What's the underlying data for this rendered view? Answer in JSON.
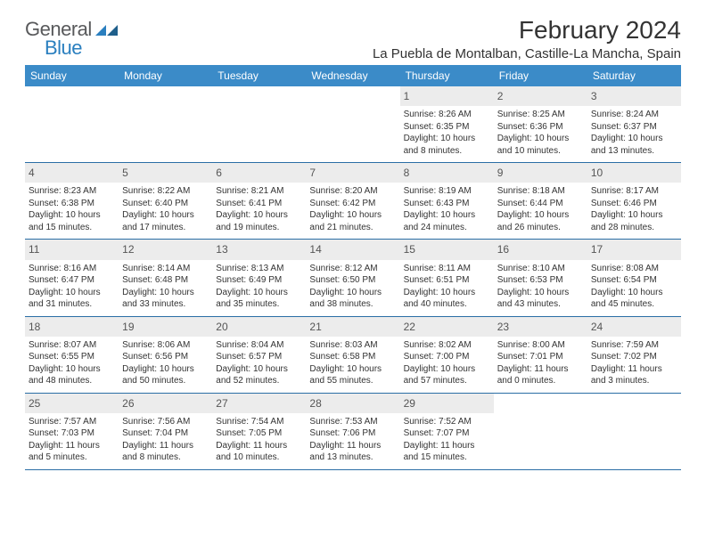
{
  "logo": {
    "general": "General",
    "blue": "Blue"
  },
  "header": {
    "month_title": "February 2024",
    "location": "La Puebla de Montalban, Castille-La Mancha, Spain"
  },
  "colors": {
    "header_bg": "#3b8bc8",
    "row_border": "#2a6ea5",
    "daynum_bg": "#ececec",
    "text": "#333333",
    "logo_gray": "#58595b",
    "logo_blue": "#2a7fbf"
  },
  "weekdays": [
    "Sunday",
    "Monday",
    "Tuesday",
    "Wednesday",
    "Thursday",
    "Friday",
    "Saturday"
  ],
  "weeks": [
    [
      {
        "blank": true
      },
      {
        "blank": true
      },
      {
        "blank": true
      },
      {
        "blank": true
      },
      {
        "day": "1",
        "sunrise": "Sunrise: 8:26 AM",
        "sunset": "Sunset: 6:35 PM",
        "daylight1": "Daylight: 10 hours",
        "daylight2": "and 8 minutes."
      },
      {
        "day": "2",
        "sunrise": "Sunrise: 8:25 AM",
        "sunset": "Sunset: 6:36 PM",
        "daylight1": "Daylight: 10 hours",
        "daylight2": "and 10 minutes."
      },
      {
        "day": "3",
        "sunrise": "Sunrise: 8:24 AM",
        "sunset": "Sunset: 6:37 PM",
        "daylight1": "Daylight: 10 hours",
        "daylight2": "and 13 minutes."
      }
    ],
    [
      {
        "day": "4",
        "sunrise": "Sunrise: 8:23 AM",
        "sunset": "Sunset: 6:38 PM",
        "daylight1": "Daylight: 10 hours",
        "daylight2": "and 15 minutes."
      },
      {
        "day": "5",
        "sunrise": "Sunrise: 8:22 AM",
        "sunset": "Sunset: 6:40 PM",
        "daylight1": "Daylight: 10 hours",
        "daylight2": "and 17 minutes."
      },
      {
        "day": "6",
        "sunrise": "Sunrise: 8:21 AM",
        "sunset": "Sunset: 6:41 PM",
        "daylight1": "Daylight: 10 hours",
        "daylight2": "and 19 minutes."
      },
      {
        "day": "7",
        "sunrise": "Sunrise: 8:20 AM",
        "sunset": "Sunset: 6:42 PM",
        "daylight1": "Daylight: 10 hours",
        "daylight2": "and 21 minutes."
      },
      {
        "day": "8",
        "sunrise": "Sunrise: 8:19 AM",
        "sunset": "Sunset: 6:43 PM",
        "daylight1": "Daylight: 10 hours",
        "daylight2": "and 24 minutes."
      },
      {
        "day": "9",
        "sunrise": "Sunrise: 8:18 AM",
        "sunset": "Sunset: 6:44 PM",
        "daylight1": "Daylight: 10 hours",
        "daylight2": "and 26 minutes."
      },
      {
        "day": "10",
        "sunrise": "Sunrise: 8:17 AM",
        "sunset": "Sunset: 6:46 PM",
        "daylight1": "Daylight: 10 hours",
        "daylight2": "and 28 minutes."
      }
    ],
    [
      {
        "day": "11",
        "sunrise": "Sunrise: 8:16 AM",
        "sunset": "Sunset: 6:47 PM",
        "daylight1": "Daylight: 10 hours",
        "daylight2": "and 31 minutes."
      },
      {
        "day": "12",
        "sunrise": "Sunrise: 8:14 AM",
        "sunset": "Sunset: 6:48 PM",
        "daylight1": "Daylight: 10 hours",
        "daylight2": "and 33 minutes."
      },
      {
        "day": "13",
        "sunrise": "Sunrise: 8:13 AM",
        "sunset": "Sunset: 6:49 PM",
        "daylight1": "Daylight: 10 hours",
        "daylight2": "and 35 minutes."
      },
      {
        "day": "14",
        "sunrise": "Sunrise: 8:12 AM",
        "sunset": "Sunset: 6:50 PM",
        "daylight1": "Daylight: 10 hours",
        "daylight2": "and 38 minutes."
      },
      {
        "day": "15",
        "sunrise": "Sunrise: 8:11 AM",
        "sunset": "Sunset: 6:51 PM",
        "daylight1": "Daylight: 10 hours",
        "daylight2": "and 40 minutes."
      },
      {
        "day": "16",
        "sunrise": "Sunrise: 8:10 AM",
        "sunset": "Sunset: 6:53 PM",
        "daylight1": "Daylight: 10 hours",
        "daylight2": "and 43 minutes."
      },
      {
        "day": "17",
        "sunrise": "Sunrise: 8:08 AM",
        "sunset": "Sunset: 6:54 PM",
        "daylight1": "Daylight: 10 hours",
        "daylight2": "and 45 minutes."
      }
    ],
    [
      {
        "day": "18",
        "sunrise": "Sunrise: 8:07 AM",
        "sunset": "Sunset: 6:55 PM",
        "daylight1": "Daylight: 10 hours",
        "daylight2": "and 48 minutes."
      },
      {
        "day": "19",
        "sunrise": "Sunrise: 8:06 AM",
        "sunset": "Sunset: 6:56 PM",
        "daylight1": "Daylight: 10 hours",
        "daylight2": "and 50 minutes."
      },
      {
        "day": "20",
        "sunrise": "Sunrise: 8:04 AM",
        "sunset": "Sunset: 6:57 PM",
        "daylight1": "Daylight: 10 hours",
        "daylight2": "and 52 minutes."
      },
      {
        "day": "21",
        "sunrise": "Sunrise: 8:03 AM",
        "sunset": "Sunset: 6:58 PM",
        "daylight1": "Daylight: 10 hours",
        "daylight2": "and 55 minutes."
      },
      {
        "day": "22",
        "sunrise": "Sunrise: 8:02 AM",
        "sunset": "Sunset: 7:00 PM",
        "daylight1": "Daylight: 10 hours",
        "daylight2": "and 57 minutes."
      },
      {
        "day": "23",
        "sunrise": "Sunrise: 8:00 AM",
        "sunset": "Sunset: 7:01 PM",
        "daylight1": "Daylight: 11 hours",
        "daylight2": "and 0 minutes."
      },
      {
        "day": "24",
        "sunrise": "Sunrise: 7:59 AM",
        "sunset": "Sunset: 7:02 PM",
        "daylight1": "Daylight: 11 hours",
        "daylight2": "and 3 minutes."
      }
    ],
    [
      {
        "day": "25",
        "sunrise": "Sunrise: 7:57 AM",
        "sunset": "Sunset: 7:03 PM",
        "daylight1": "Daylight: 11 hours",
        "daylight2": "and 5 minutes."
      },
      {
        "day": "26",
        "sunrise": "Sunrise: 7:56 AM",
        "sunset": "Sunset: 7:04 PM",
        "daylight1": "Daylight: 11 hours",
        "daylight2": "and 8 minutes."
      },
      {
        "day": "27",
        "sunrise": "Sunrise: 7:54 AM",
        "sunset": "Sunset: 7:05 PM",
        "daylight1": "Daylight: 11 hours",
        "daylight2": "and 10 minutes."
      },
      {
        "day": "28",
        "sunrise": "Sunrise: 7:53 AM",
        "sunset": "Sunset: 7:06 PM",
        "daylight1": "Daylight: 11 hours",
        "daylight2": "and 13 minutes."
      },
      {
        "day": "29",
        "sunrise": "Sunrise: 7:52 AM",
        "sunset": "Sunset: 7:07 PM",
        "daylight1": "Daylight: 11 hours",
        "daylight2": "and 15 minutes."
      },
      {
        "blank": true
      },
      {
        "blank": true
      }
    ]
  ]
}
